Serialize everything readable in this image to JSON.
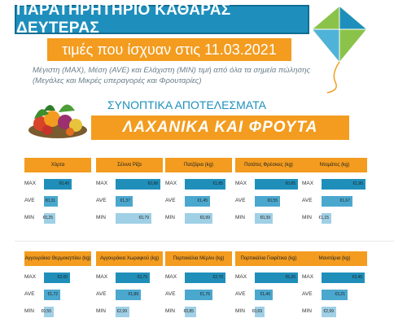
{
  "header": {
    "title": "ΠΑΡΑΤΗΡΗΤΗΡΙΟ ΚΑΘΑΡΑΣ ΔΕΥΤΕΡΑΣ",
    "date_line": "τιμές που ίσχυαν στις 11.03.2021",
    "desc_line1": "Μέγιστη (MAX), Μέση (AVE) και Ελάχιστη (MIN) τιμή από όλα τα σημεία πώλησης",
    "desc_line2": "(Μεγάλες και Μικρές υπεραγορές και Φρουταρίες)",
    "summary": "ΣΥΝΟΠΤΙΚΑ ΑΠΟΤΕΛΕΣΜΑΤΑ",
    "category": "ΛΑΧΑΝΙΚΑ ΚΑΙ ΦΡΟΥΤΑ"
  },
  "labels": {
    "max": "MAX",
    "ave": "AVE",
    "min": "MIN"
  },
  "colors": {
    "blue": "#1e8fbc",
    "orange": "#f39c1f",
    "light_blue": "#9fd0e6"
  },
  "icons": [
    "kite-icon",
    "vegetables-image"
  ],
  "panels": [
    {
      "name": "Χόρτα",
      "max": 0.6,
      "ave": 0.31,
      "min": 0.25,
      "max_label": "€0,45",
      "ave_label": "€0,31",
      "min_label": "€0,25"
    },
    {
      "name": "Σέλινο Ρίζα",
      "max": 0.98,
      "ave": 0.37,
      "min": 0.79,
      "max_label": "€0,98",
      "ave_label": "€1,37",
      "min_label": "€0,79"
    },
    {
      "name": "Πατζάρια (kg)",
      "max": 0.9,
      "ave": 0.55,
      "min": 0.6,
      "max_label": "€1,85",
      "ave_label": "€1,45",
      "min_label": "€0,99"
    },
    {
      "name": "Πατάτες Φρέσκιες (kg)",
      "max": 0.95,
      "ave": 0.55,
      "min": 0.4,
      "max_label": "€0,85",
      "ave_label": "€0,55",
      "min_label": "€0,39"
    },
    {
      "name": "Ντομάτες (kg)",
      "max": 0.96,
      "ave": 0.67,
      "min": 0.18,
      "max_label": "€1,95",
      "ave_label": "€1,67",
      "min_label": "€1,15"
    },
    {
      "name": "Αγγουράκια Θερμοκηπίου (kg)",
      "max": 0.58,
      "ave": 0.36,
      "min": 0.2,
      "max_label": "€2,00",
      "ave_label": "€1,72",
      "min_label": "€0,55"
    },
    {
      "name": "Αγγουράκια Χωραφιού (kg)",
      "max": 0.75,
      "ave": 0.55,
      "min": 0.3,
      "max_label": "€3,75",
      "ave_label": "€1,89",
      "min_label": "€2,99"
    },
    {
      "name": "Πορτοκάλια Μέρλιν (kg)",
      "max": 0.9,
      "ave": 0.6,
      "min": 0.25,
      "max_label": "€2,70",
      "ave_label": "€1,76",
      "min_label": "€0,85"
    },
    {
      "name": "Πορτοκάλια Γιαφέτικα (kg)",
      "max": 0.95,
      "ave": 0.4,
      "min": 0.2,
      "max_label": "€5,20",
      "ave_label": "€1,40",
      "min_label": "€0,69"
    },
    {
      "name": "Μανιτάρια (kg)",
      "max": 0.95,
      "ave": 0.58,
      "min": 0.32,
      "max_label": "€3,45",
      "ave_label": "€3,21",
      "min_label": "€2,99"
    }
  ]
}
